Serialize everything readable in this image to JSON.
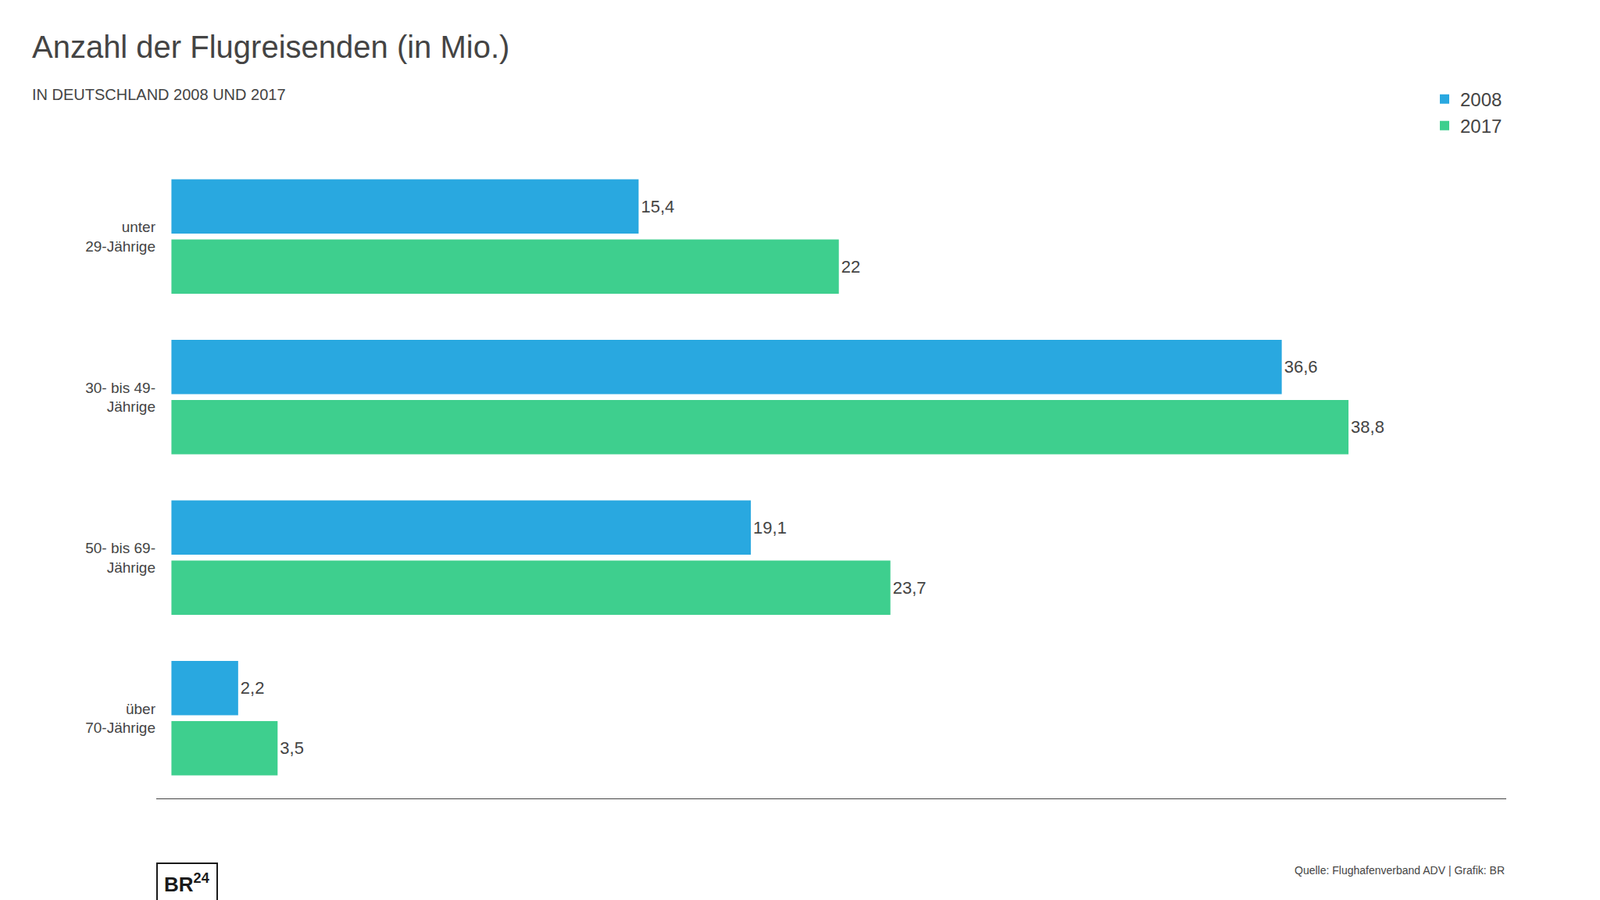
{
  "chart_data": {
    "type": "bar",
    "orientation": "horizontal",
    "title": "Anzahl der Flugreisenden (in Mio.)",
    "subtitle": "IN DEUTSCHLAND 2008 UND 2017",
    "categories": [
      "unter\n29-Jährige",
      "30- bis 49-\nJährige",
      "50- bis 69-\nJährige",
      "über\n70-Jährige"
    ],
    "series": [
      {
        "name": "2008",
        "color": "#29a8e0",
        "values": [
          15.4,
          36.6,
          19.1,
          2.2
        ],
        "value_labels": [
          "15,4",
          "36,6",
          "19,1",
          "2,2"
        ]
      },
      {
        "name": "2017",
        "color": "#3ecf8e",
        "values": [
          22.0,
          38.8,
          23.7,
          3.5
        ],
        "value_labels": [
          "22",
          "38,8",
          "23,7",
          "3,5"
        ]
      }
    ],
    "xlim": [
      -0.5,
      44
    ],
    "data_labels": true,
    "tick_labels": "y",
    "grid": false,
    "legend": "upper right",
    "annotations": [
      "Quelle: Flughafenverband ADV | Grafik: BR",
      "BR",
      "24"
    ]
  }
}
